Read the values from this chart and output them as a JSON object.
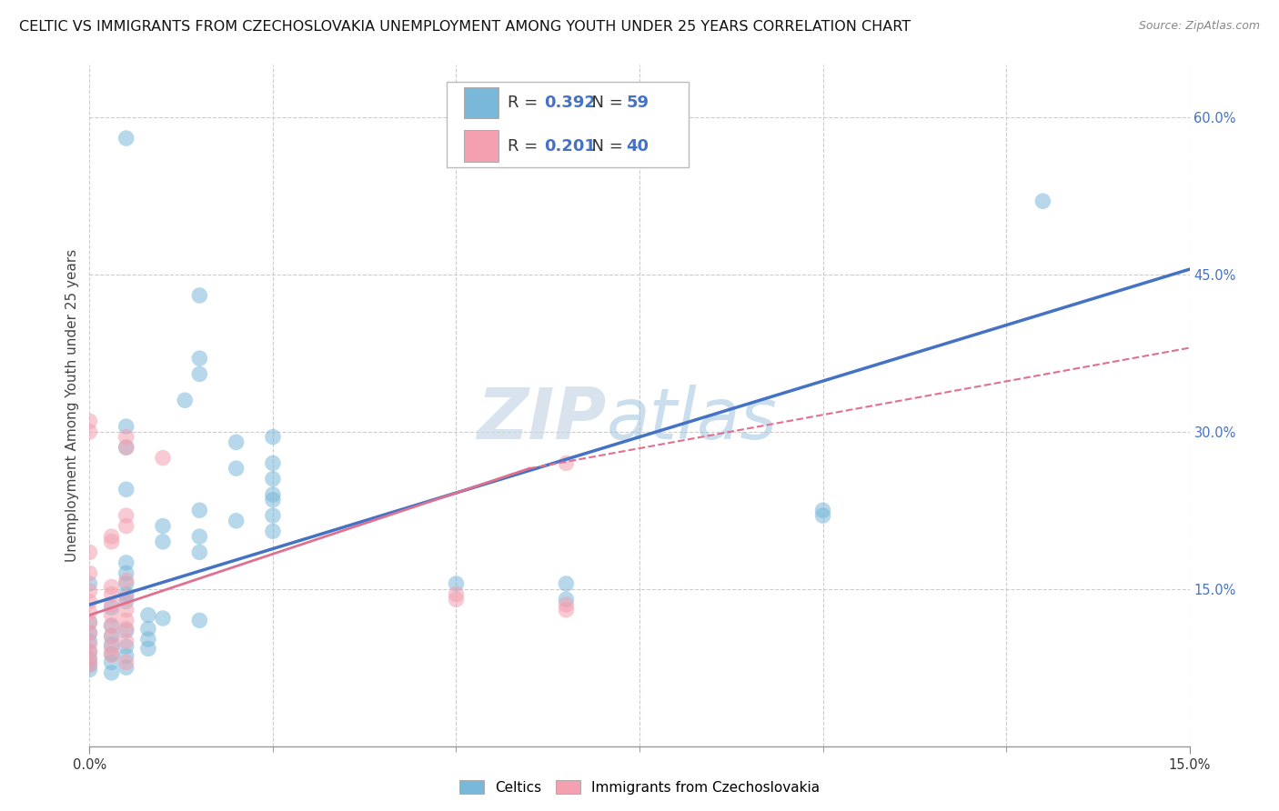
{
  "title": "CELTIC VS IMMIGRANTS FROM CZECHOSLOVAKIA UNEMPLOYMENT AMONG YOUTH UNDER 25 YEARS CORRELATION CHART",
  "source": "Source: ZipAtlas.com",
  "ylabel": "Unemployment Among Youth under 25 years",
  "xlabel_celtics": "Celtics",
  "xlabel_immigrants": "Immigrants from Czechoslovakia",
  "xlim": [
    0.0,
    0.15
  ],
  "ylim": [
    0.0,
    0.65
  ],
  "xtick_major": [
    0.0,
    0.15
  ],
  "xtick_minor": [
    0.025,
    0.05,
    0.075,
    0.1,
    0.125
  ],
  "xtick_major_labels": [
    "0.0%",
    "15.0%"
  ],
  "yticks": [
    0.15,
    0.3,
    0.45,
    0.6
  ],
  "ytick_labels": [
    "15.0%",
    "30.0%",
    "45.0%",
    "60.0%"
  ],
  "celtics_R": 0.392,
  "celtics_N": 59,
  "immigrants_R": 0.201,
  "immigrants_N": 40,
  "celtics_color": "#7ab8d9",
  "immigrants_color": "#f4a0b0",
  "line_celtics_color": "#4472c4",
  "line_immigrants_color": "#e07090",
  "celtics_scatter": [
    [
      0.005,
      0.58
    ],
    [
      0.015,
      0.43
    ],
    [
      0.015,
      0.37
    ],
    [
      0.015,
      0.355
    ],
    [
      0.013,
      0.33
    ],
    [
      0.005,
      0.305
    ],
    [
      0.025,
      0.295
    ],
    [
      0.02,
      0.29
    ],
    [
      0.005,
      0.285
    ],
    [
      0.025,
      0.27
    ],
    [
      0.02,
      0.265
    ],
    [
      0.025,
      0.255
    ],
    [
      0.005,
      0.245
    ],
    [
      0.025,
      0.24
    ],
    [
      0.025,
      0.235
    ],
    [
      0.015,
      0.225
    ],
    [
      0.025,
      0.22
    ],
    [
      0.02,
      0.215
    ],
    [
      0.01,
      0.21
    ],
    [
      0.025,
      0.205
    ],
    [
      0.015,
      0.2
    ],
    [
      0.01,
      0.195
    ],
    [
      0.015,
      0.185
    ],
    [
      0.005,
      0.175
    ],
    [
      0.005,
      0.165
    ],
    [
      0.005,
      0.155
    ],
    [
      0.0,
      0.155
    ],
    [
      0.005,
      0.145
    ],
    [
      0.005,
      0.138
    ],
    [
      0.003,
      0.132
    ],
    [
      0.008,
      0.125
    ],
    [
      0.01,
      0.122
    ],
    [
      0.015,
      0.12
    ],
    [
      0.0,
      0.118
    ],
    [
      0.003,
      0.115
    ],
    [
      0.008,
      0.112
    ],
    [
      0.005,
      0.11
    ],
    [
      0.0,
      0.108
    ],
    [
      0.003,
      0.105
    ],
    [
      0.008,
      0.102
    ],
    [
      0.0,
      0.1
    ],
    [
      0.003,
      0.097
    ],
    [
      0.005,
      0.095
    ],
    [
      0.008,
      0.093
    ],
    [
      0.0,
      0.09
    ],
    [
      0.003,
      0.088
    ],
    [
      0.005,
      0.086
    ],
    [
      0.0,
      0.083
    ],
    [
      0.003,
      0.08
    ],
    [
      0.0,
      0.078
    ],
    [
      0.005,
      0.075
    ],
    [
      0.0,
      0.073
    ],
    [
      0.003,
      0.07
    ],
    [
      0.05,
      0.155
    ],
    [
      0.065,
      0.155
    ],
    [
      0.065,
      0.14
    ],
    [
      0.1,
      0.225
    ],
    [
      0.1,
      0.22
    ],
    [
      0.13,
      0.52
    ]
  ],
  "immigrants_scatter": [
    [
      0.0,
      0.31
    ],
    [
      0.0,
      0.3
    ],
    [
      0.005,
      0.295
    ],
    [
      0.005,
      0.285
    ],
    [
      0.01,
      0.275
    ],
    [
      0.005,
      0.22
    ],
    [
      0.005,
      0.21
    ],
    [
      0.003,
      0.2
    ],
    [
      0.003,
      0.195
    ],
    [
      0.0,
      0.185
    ],
    [
      0.0,
      0.165
    ],
    [
      0.005,
      0.158
    ],
    [
      0.003,
      0.152
    ],
    [
      0.0,
      0.148
    ],
    [
      0.003,
      0.145
    ],
    [
      0.005,
      0.142
    ],
    [
      0.0,
      0.138
    ],
    [
      0.003,
      0.135
    ],
    [
      0.005,
      0.13
    ],
    [
      0.0,
      0.128
    ],
    [
      0.003,
      0.125
    ],
    [
      0.005,
      0.12
    ],
    [
      0.0,
      0.118
    ],
    [
      0.003,
      0.115
    ],
    [
      0.005,
      0.112
    ],
    [
      0.0,
      0.108
    ],
    [
      0.003,
      0.105
    ],
    [
      0.005,
      0.1
    ],
    [
      0.0,
      0.097
    ],
    [
      0.003,
      0.094
    ],
    [
      0.0,
      0.09
    ],
    [
      0.003,
      0.087
    ],
    [
      0.0,
      0.083
    ],
    [
      0.005,
      0.08
    ],
    [
      0.0,
      0.077
    ],
    [
      0.05,
      0.145
    ],
    [
      0.05,
      0.14
    ],
    [
      0.065,
      0.135
    ],
    [
      0.065,
      0.13
    ],
    [
      0.065,
      0.27
    ]
  ],
  "watermark": "ZIPatlas",
  "background_color": "#ffffff",
  "grid_color": "#cccccc",
  "title_fontsize": 11.5,
  "axis_label_fontsize": 11,
  "tick_fontsize": 10.5,
  "legend_fontsize": 13
}
